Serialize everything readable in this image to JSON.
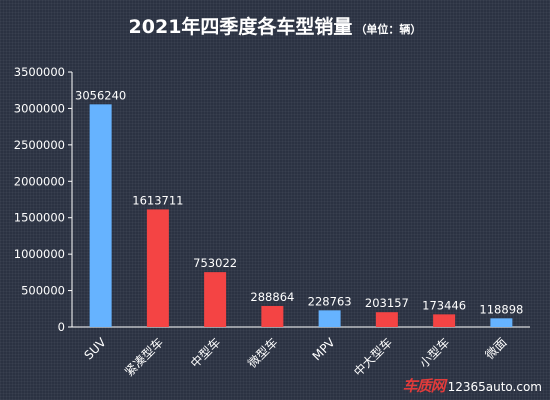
{
  "title": "2021年四季度各车型销量",
  "title_unit": "（单位：辆）",
  "watermark": {
    "logo_text": "车质网",
    "url": "12365auto.com"
  },
  "colors": {
    "background": "#2b3242",
    "axis": "#ffffff",
    "blue": "#66b3ff",
    "red": "#f44444",
    "text": "#ffffff"
  },
  "chart_data": {
    "type": "bar",
    "title": "2021年四季度各车型销量",
    "subtitle": "（单位：辆）",
    "xlabel": "",
    "ylabel": "",
    "categories": [
      "SUV",
      "紧凑型车",
      "中型车",
      "微型车",
      "MPV",
      "中大型车",
      "小型车",
      "微面"
    ],
    "values": [
      3056240,
      1613711,
      753022,
      288864,
      228763,
      203157,
      173446,
      118898
    ],
    "value_labels": [
      "3056240",
      "1613711",
      "753022",
      "288864",
      "228763",
      "203157",
      "173446",
      "118898"
    ],
    "bar_colors": [
      "#66b3ff",
      "#f44444",
      "#f44444",
      "#f44444",
      "#66b3ff",
      "#f44444",
      "#f44444",
      "#66b3ff"
    ],
    "ylim": [
      0,
      3500000
    ],
    "yticks": [
      0,
      500000,
      1000000,
      1500000,
      2000000,
      2500000,
      3000000,
      3500000
    ],
    "ytick_labels": [
      "0",
      "500000",
      "1000000",
      "1500000",
      "2000000",
      "2500000",
      "3000000",
      "3500000"
    ],
    "grid": false,
    "legend": "none"
  }
}
